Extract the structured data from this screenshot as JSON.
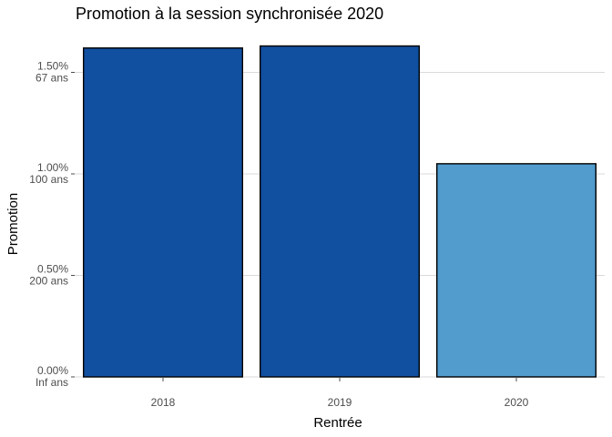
{
  "chart_data": {
    "type": "bar",
    "title": "Promotion à la session synchronisée 2020",
    "xlabel": "Rentrée",
    "ylabel": "Promotion",
    "categories": [
      "2018",
      "2019",
      "2020"
    ],
    "values": [
      1.62,
      1.63,
      1.05
    ],
    "unit": "%",
    "bar_colors": [
      "#1150a0",
      "#1150a0",
      "#519bcd"
    ],
    "ylim": [
      0,
      1.7
    ],
    "yticks": [
      {
        "value": 0.0,
        "label": "0.00%",
        "sublabel": "Inf ans"
      },
      {
        "value": 0.5,
        "label": "0.50%",
        "sublabel": "200 ans"
      },
      {
        "value": 1.0,
        "label": "1.00%",
        "sublabel": "100 ans"
      },
      {
        "value": 1.5,
        "label": "1.50%",
        "sublabel": "67 ans"
      }
    ],
    "grid": true,
    "legend": "none"
  }
}
